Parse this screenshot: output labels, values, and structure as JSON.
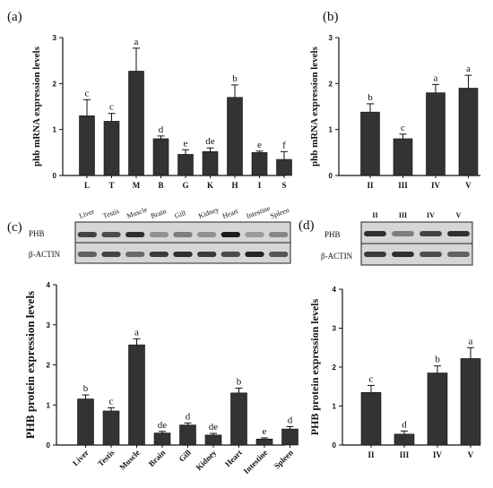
{
  "panels": [
    {
      "label": "(a)"
    },
    {
      "label": "(b)"
    },
    {
      "label": "(c)"
    },
    {
      "label": "(d)"
    }
  ],
  "blots": {
    "c": {
      "lanes": [
        "Liver",
        "Testis",
        "Muscle",
        "Brain",
        "Gill",
        "Kidney",
        "Heart",
        "Intestine",
        "Spleen"
      ],
      "rows": [
        "PHB",
        "β-ACTIN"
      ]
    },
    "d": {
      "lanes": [
        "II",
        "III",
        "IV",
        "V"
      ],
      "rows": [
        "PHB",
        "β-ACTIN"
      ]
    }
  },
  "chart_data": [
    {
      "panel": "a",
      "type": "bar",
      "ylabel": "phb mRNA expression levels",
      "categories": [
        "L",
        "T",
        "M",
        "B",
        "G",
        "K",
        "H",
        "I",
        "S"
      ],
      "values": [
        1.3,
        1.18,
        2.27,
        0.8,
        0.46,
        0.52,
        1.7,
        0.5,
        0.35
      ],
      "errors": [
        0.35,
        0.17,
        0.5,
        0.06,
        0.1,
        0.08,
        0.27,
        0.03,
        0.17
      ],
      "letters": [
        "c",
        "c",
        "a",
        "d",
        "e",
        "de",
        "b",
        "e",
        "f"
      ],
      "ylim": [
        0,
        3
      ],
      "yticks": [
        "0",
        "1",
        "2",
        "3"
      ]
    },
    {
      "panel": "b",
      "type": "bar",
      "ylabel": "phb mRNA expression levels",
      "categories": [
        "II",
        "III",
        "IV",
        "V"
      ],
      "values": [
        1.38,
        0.8,
        1.8,
        1.9
      ],
      "errors": [
        0.18,
        0.1,
        0.18,
        0.28
      ],
      "letters": [
        "b",
        "c",
        "a",
        "a"
      ],
      "ylim": [
        0,
        3
      ],
      "yticks": [
        "0",
        "1",
        "2",
        "3"
      ]
    },
    {
      "panel": "c",
      "type": "bar",
      "ylabel": "PHB protein expression levels",
      "categories": [
        "Liver",
        "Testis",
        "Muscle",
        "Brain",
        "Gill",
        "Kidney",
        "Heart",
        "Intestine",
        "Spleen"
      ],
      "values": [
        1.15,
        0.85,
        2.5,
        0.3,
        0.5,
        0.25,
        1.3,
        0.15,
        0.4
      ],
      "errors": [
        0.1,
        0.08,
        0.15,
        0.04,
        0.05,
        0.04,
        0.12,
        0.03,
        0.06
      ],
      "letters": [
        "b",
        "c",
        "a",
        "de",
        "d",
        "de",
        "b",
        "e",
        "d"
      ],
      "ylim": [
        0,
        4
      ],
      "yticks": [
        "0",
        "1",
        "2",
        "3",
        "4"
      ]
    },
    {
      "panel": "d",
      "type": "bar",
      "ylabel": "PHB protein expression levels",
      "categories": [
        "II",
        "III",
        "IV",
        "V"
      ],
      "values": [
        1.35,
        0.28,
        1.85,
        2.22
      ],
      "errors": [
        0.18,
        0.08,
        0.18,
        0.28
      ],
      "letters": [
        "c",
        "d",
        "b",
        "a"
      ],
      "ylim": [
        0,
        4
      ],
      "yticks": [
        "0",
        "1",
        "2",
        "3",
        "4"
      ]
    }
  ]
}
